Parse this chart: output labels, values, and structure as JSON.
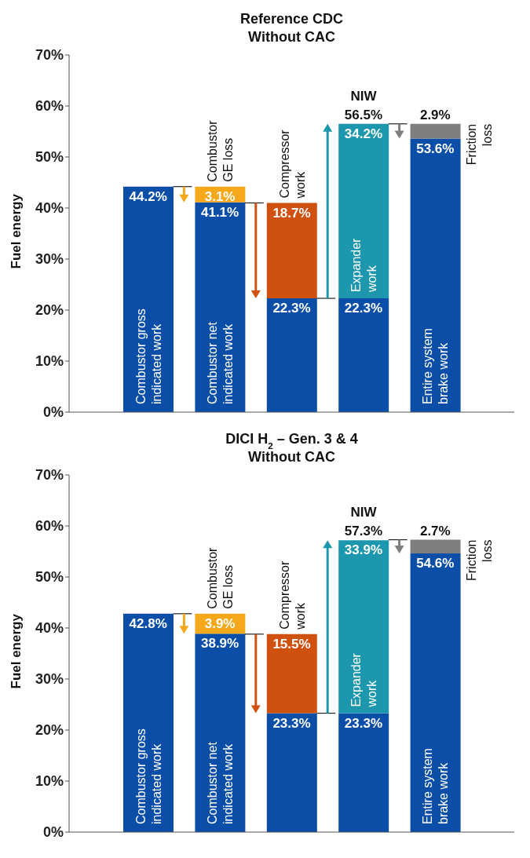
{
  "chart_data": [
    {
      "type": "bar",
      "title": "Reference CDC",
      "subtitle": "Without CAC",
      "ylabel": "Fuel energy",
      "stacked": true,
      "tick_labels": "y",
      "categories": [
        null,
        null,
        null,
        null,
        null
      ],
      "ylim": [
        0,
        70
      ],
      "yticks": [
        {
          "value": 0,
          "label": "0%"
        },
        {
          "value": 10,
          "label": "10%"
        },
        {
          "value": 20,
          "label": "20%"
        },
        {
          "value": 30,
          "label": "30%"
        },
        {
          "value": 40,
          "label": "40%"
        },
        {
          "value": 50,
          "label": "50%"
        },
        {
          "value": 60,
          "label": "60%"
        },
        {
          "value": 70,
          "label": "70%"
        }
      ],
      "series": [
        {
          "color": "#0a4ea8",
          "values": [
            44.2,
            41.1,
            22.3,
            22.3,
            53.6
          ],
          "value_labels": [
            "44.2%",
            "41.1%",
            "22.3%",
            "22.3%",
            "53.6%"
          ]
        },
        {
          "color": "#f5a81c",
          "values": [
            null,
            3.1,
            null,
            null,
            null
          ],
          "value_labels": [
            null,
            "3.1%",
            null,
            null,
            null
          ]
        },
        {
          "color": "#d0510f",
          "values": [
            null,
            null,
            18.7,
            null,
            null
          ],
          "value_labels": [
            null,
            null,
            "18.7%",
            null,
            null
          ]
        },
        {
          "color": "#1d97ae",
          "values": [
            null,
            null,
            null,
            34.2,
            null
          ],
          "value_labels": [
            null,
            null,
            null,
            "34.2%",
            null
          ]
        },
        {
          "color": "#7f7f7f",
          "values": [
            null,
            null,
            null,
            null,
            2.9
          ],
          "value_labels": [
            null,
            null,
            null,
            null,
            "2.9%"
          ]
        }
      ],
      "totals": [
        null,
        null,
        null,
        "56.5%",
        null
      ],
      "annotations": [
        "Combustor gross indicated work",
        "Combustor GE loss",
        "Combustor net indicated work",
        "Compressor work",
        "NIW",
        "Expander work",
        "Entire system brake work",
        "Friction loss"
      ]
    },
    {
      "type": "bar",
      "title": "DICI H$_{2}$ – Gen. 3 & 4",
      "subtitle": "Without CAC",
      "ylabel": "Fuel energy",
      "stacked": true,
      "tick_labels": "y",
      "categories": [
        null,
        null,
        null,
        null,
        null
      ],
      "ylim": [
        0,
        70
      ],
      "yticks": [
        {
          "value": 0,
          "label": "0%"
        },
        {
          "value": 10,
          "label": "10%"
        },
        {
          "value": 20,
          "label": "20%"
        },
        {
          "value": 30,
          "label": "30%"
        },
        {
          "value": 40,
          "label": "40%"
        },
        {
          "value": 50,
          "label": "50%"
        },
        {
          "value": 60,
          "label": "60%"
        },
        {
          "value": 70,
          "label": "70%"
        }
      ],
      "series": [
        {
          "color": "#0a4ea8",
          "values": [
            42.8,
            38.9,
            23.3,
            23.3,
            54.6
          ],
          "value_labels": [
            "42.8%",
            "38.9%",
            "23.3%",
            "23.3%",
            "54.6%"
          ]
        },
        {
          "color": "#f5a81c",
          "values": [
            null,
            3.9,
            null,
            null,
            null
          ],
          "value_labels": [
            null,
            "3.9%",
            null,
            null,
            null
          ]
        },
        {
          "color": "#d0510f",
          "values": [
            null,
            null,
            15.5,
            null,
            null
          ],
          "value_labels": [
            null,
            null,
            "15.5%",
            null,
            null
          ]
        },
        {
          "color": "#1d97ae",
          "values": [
            null,
            null,
            null,
            33.9,
            null
          ],
          "value_labels": [
            null,
            null,
            null,
            "33.9%",
            null
          ]
        },
        {
          "color": "#7f7f7f",
          "values": [
            null,
            null,
            null,
            null,
            2.7
          ],
          "value_labels": [
            null,
            null,
            null,
            null,
            "2.7%"
          ]
        }
      ],
      "totals": [
        null,
        null,
        null,
        "57.3%",
        null
      ],
      "annotations": [
        "Combustor gross indicated work",
        "Combustor GE loss",
        "Combustor net indicated work",
        "Compressor work",
        "NIW",
        "Expander work",
        "Entire system brake work",
        "Friction loss"
      ]
    }
  ]
}
